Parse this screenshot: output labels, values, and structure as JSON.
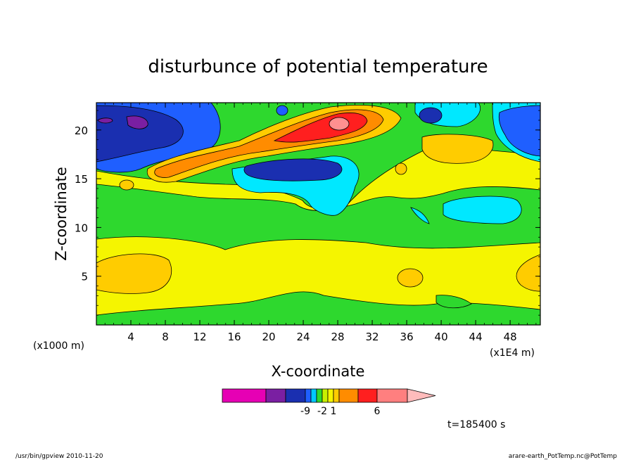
{
  "chart_data": {
    "type": "heatmap",
    "title": "disturbunce of potential temperature",
    "xlabel": "X-coordinate",
    "ylabel": "Z-coordinate",
    "x_unit_left": "(x1000 m)",
    "x_unit_right": "(x1E4 m)",
    "xlim": [
      0,
      51.5
    ],
    "ylim": [
      0,
      22.8
    ],
    "xticks": [
      4,
      8,
      12,
      16,
      20,
      24,
      28,
      32,
      36,
      40,
      44,
      48
    ],
    "yticks": [
      5,
      10,
      15,
      20
    ],
    "grid": false,
    "time_label": "t=185400 s",
    "colorbar": {
      "labels": [
        {
          "text": "-9",
          "index": 3
        },
        {
          "text": "-2",
          "index": 6
        },
        {
          "text": "1",
          "index": 8
        },
        {
          "text": "6",
          "index": 11
        }
      ],
      "colors": [
        "#e600b4",
        "#7a1fa2",
        "#1a2fb0",
        "#1f5fff",
        "#00c8ff",
        "#2ed82e",
        "#c8f000",
        "#f5f500",
        "#ffcc00",
        "#ff8c00",
        "#ff1f1f",
        "#ff7f7f",
        "#ffbcbc"
      ]
    },
    "regions": [
      {
        "level": "yellow-green",
        "color": "#f5f500"
      },
      {
        "level": "green",
        "color": "#2ed82e"
      },
      {
        "level": "cyan",
        "color": "#00e8ff"
      },
      {
        "level": "blue",
        "color": "#1f5fff"
      },
      {
        "level": "dark-blue",
        "color": "#1a2fb0"
      },
      {
        "level": "purple",
        "color": "#7a1fa2"
      },
      {
        "level": "orange-yellow",
        "color": "#ffcc00"
      },
      {
        "level": "orange",
        "color": "#ff8c00"
      },
      {
        "level": "red",
        "color": "#ff1f1f"
      },
      {
        "level": "pink",
        "color": "#ff9090"
      }
    ]
  },
  "footer": {
    "left": "/usr/bin/gpview  2010-11-20",
    "right": "arare-earth_PotTemp.nc@PotTemp"
  }
}
